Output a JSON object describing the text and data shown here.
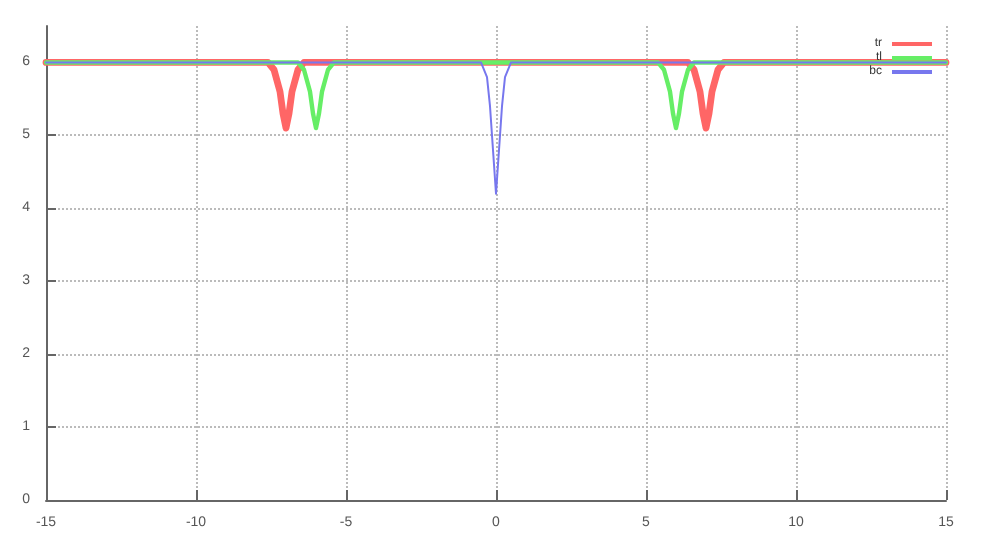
{
  "chart_data": {
    "type": "line",
    "xlim": [
      -15,
      15
    ],
    "xticks": [
      -15,
      -10,
      -5,
      0,
      5,
      10,
      15
    ],
    "ylim": [
      0,
      6.5
    ],
    "yticks": [
      0,
      1,
      2,
      3,
      4,
      5,
      6
    ],
    "grid": true,
    "legend": "top right",
    "marker": "none",
    "line_style": "solid",
    "series": [
      {
        "name": "tr",
        "color": "#ff6666",
        "x": [
          -15,
          -7.6,
          -7.4,
          -7.2,
          -7.1,
          -7,
          -6.9,
          -6.8,
          -6.6,
          -6.4,
          6.4,
          6.6,
          6.8,
          6.9,
          7,
          7.1,
          7.2,
          7.4,
          7.6,
          15
        ],
        "values": [
          6,
          6,
          5.9,
          5.6,
          5.3,
          5.1,
          5.3,
          5.6,
          5.9,
          6,
          6,
          5.9,
          5.6,
          5.3,
          5.1,
          5.3,
          5.6,
          5.9,
          6,
          6
        ]
      },
      {
        "name": "tl",
        "color": "#66ee66",
        "x": [
          -15,
          -6.6,
          -6.4,
          -6.2,
          -6.1,
          -6,
          -5.9,
          -5.8,
          -5.6,
          -5.4,
          5.4,
          5.6,
          5.8,
          5.9,
          6,
          6.1,
          6.2,
          6.4,
          6.6,
          15
        ],
        "values": [
          6,
          6,
          5.9,
          5.6,
          5.3,
          5.1,
          5.3,
          5.6,
          5.9,
          6,
          6,
          5.9,
          5.6,
          5.3,
          5.1,
          5.3,
          5.6,
          5.9,
          6,
          6
        ]
      },
      {
        "name": "bc",
        "color": "#7777ee",
        "x": [
          -15,
          -0.5,
          -0.3,
          -0.2,
          -0.1,
          0,
          0.1,
          0.2,
          0.3,
          0.5,
          15
        ],
        "values": [
          6,
          6,
          5.8,
          5.4,
          4.8,
          4.2,
          4.8,
          5.4,
          5.8,
          6,
          6
        ]
      }
    ]
  }
}
